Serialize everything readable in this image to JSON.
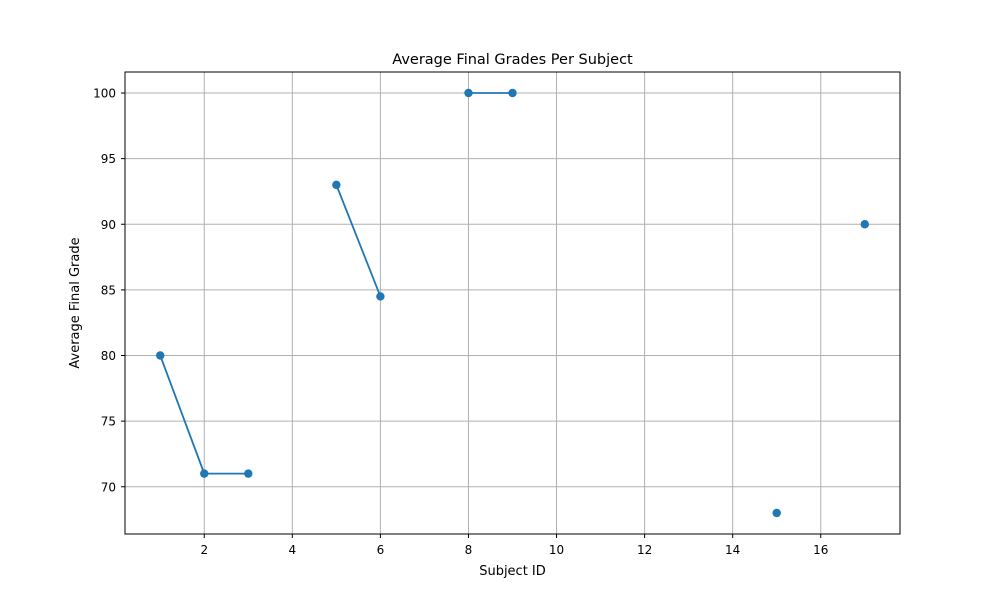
{
  "chart_data": {
    "type": "line",
    "title": "Average Final Grades Per Subject",
    "xlabel": "Subject ID",
    "ylabel": "Average Final Grade",
    "xlim": [
      0.2,
      17.8
    ],
    "ylim": [
      66.4,
      101.6
    ],
    "xticks": [
      2,
      4,
      6,
      8,
      10,
      12,
      14,
      16
    ],
    "yticks": [
      70,
      75,
      80,
      85,
      90,
      95,
      100
    ],
    "grid": true,
    "colors": {
      "series": "#1f77b4",
      "grid": "#b0b0b0",
      "axis": "#000000"
    },
    "series": [
      {
        "values": [
          {
            "x": 1,
            "y": 80
          },
          {
            "x": 2,
            "y": 71
          },
          {
            "x": 3,
            "y": 71
          },
          {
            "x": 4,
            "y": null
          },
          {
            "x": 5,
            "y": 93
          },
          {
            "x": 6,
            "y": 84.5
          },
          {
            "x": 7,
            "y": null
          },
          {
            "x": 8,
            "y": 100
          },
          {
            "x": 9,
            "y": 100
          },
          {
            "x": 10,
            "y": null
          },
          {
            "x": 15,
            "y": 68
          },
          {
            "x": 16,
            "y": null
          },
          {
            "x": 17,
            "y": 90
          }
        ]
      }
    ]
  }
}
